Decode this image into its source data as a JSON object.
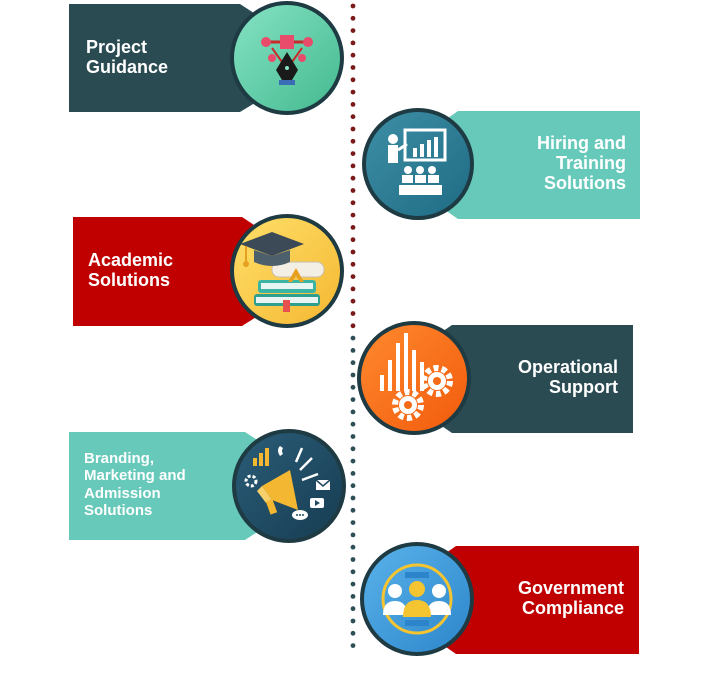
{
  "colors": {
    "dark_teal": "#2A4B52",
    "light_teal": "#67C9BA",
    "red": "#C00000",
    "orange": "#FF6B12",
    "circle_outline": "#1E3A42",
    "dot_red": "#7A1A1A",
    "dot_teal": "#2F4F56"
  },
  "items": [
    {
      "lines": [
        "Project",
        "Guidance"
      ],
      "side": "left",
      "icon": "pen-tool-icon"
    },
    {
      "lines": [
        "Hiring and",
        "Training",
        "Solutions"
      ],
      "side": "right",
      "icon": "presentation-icon"
    },
    {
      "lines": [
        "Academic",
        "Solutions"
      ],
      "side": "left",
      "icon": "graduation-books-icon"
    },
    {
      "lines": [
        "Operational",
        "Support"
      ],
      "side": "right",
      "icon": "gears-chart-icon"
    },
    {
      "lines": [
        "Branding,",
        "Marketing and",
        "Admission",
        "Solutions"
      ],
      "side": "left",
      "icon": "megaphone-icon"
    },
    {
      "lines": [
        "Government",
        "Compliance"
      ],
      "side": "right",
      "icon": "people-group-icon"
    }
  ]
}
